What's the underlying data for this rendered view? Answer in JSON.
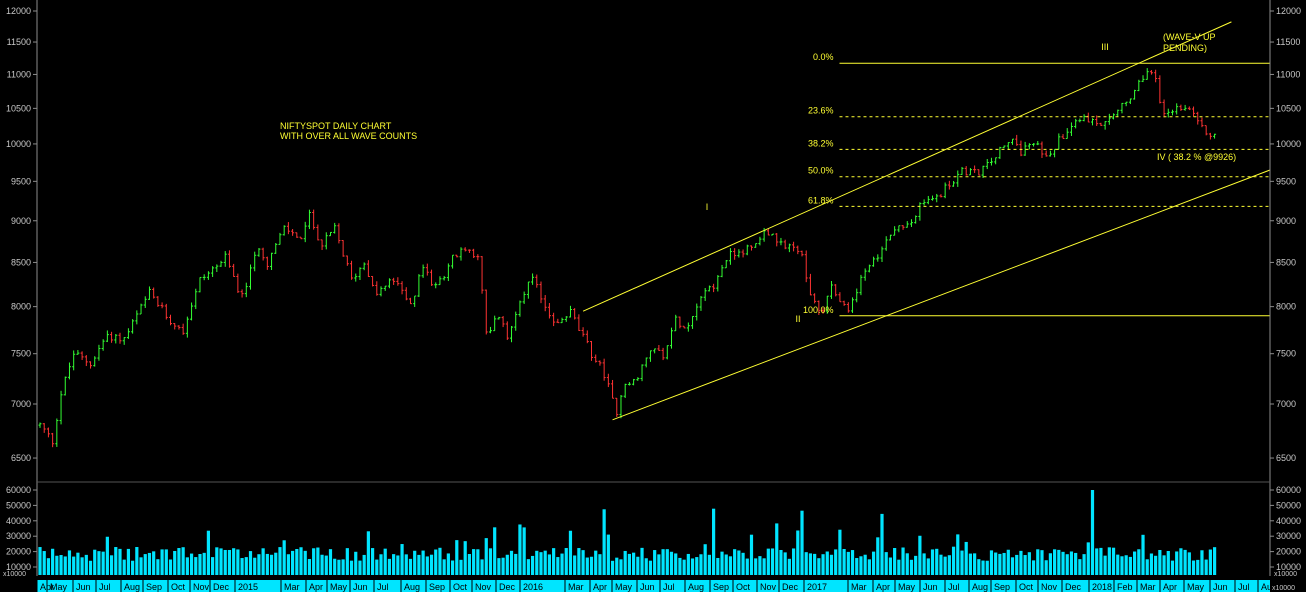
{
  "chart_data": {
    "type": "candlestick",
    "scale": "log",
    "price_axis": {
      "ticks": [
        6500,
        7000,
        7500,
        8000,
        8500,
        9000,
        9500,
        10000,
        10500,
        11000,
        11500,
        12000
      ],
      "tick_labels": [
        "6500",
        "7000",
        "7500",
        "8000",
        "8500",
        "9000",
        "9500",
        "10000",
        "10500",
        "11000",
        "11500",
        "12000"
      ]
    },
    "volume_axis": {
      "ticks": [
        10000,
        20000,
        30000,
        40000,
        50000,
        60000
      ],
      "tick_labels": [
        "10000",
        "20000",
        "30000",
        "40000",
        "50000",
        "60000"
      ],
      "multiplier_label": "x10000"
    },
    "x_axis": {
      "labels": [
        "Apr",
        "May",
        "Jun",
        "Jul",
        "Aug",
        "Sep",
        "Oct",
        "Nov",
        "Dec",
        "2015",
        "Mar",
        "Apr",
        "May",
        "Jun",
        "Jul",
        "Aug",
        "Sep",
        "Oct",
        "Nov",
        "Dec",
        "2016",
        "Mar",
        "Apr",
        "May",
        "Jun",
        "Jul",
        "Aug",
        "Sep",
        "Oct",
        "Nov",
        "Dec",
        "2017",
        "Mar",
        "Apr",
        "May",
        "Jun",
        "Jul",
        "Aug",
        "Sep",
        "Oct",
        "Nov",
        "Dec",
        "2018",
        "Feb",
        "Mar",
        "Apr",
        "May",
        "Jun",
        "Jul",
        "Aug"
      ],
      "multiplier_label": "x10000"
    },
    "price_keypoints": [
      {
        "t": 0,
        "p": 6800
      },
      {
        "t": 3,
        "p": 6650
      },
      {
        "t": 5,
        "p": 7100
      },
      {
        "t": 8,
        "p": 7500
      },
      {
        "t": 12,
        "p": 7400
      },
      {
        "t": 16,
        "p": 7700
      },
      {
        "t": 20,
        "p": 7650
      },
      {
        "t": 26,
        "p": 8150
      },
      {
        "t": 30,
        "p": 7900
      },
      {
        "t": 34,
        "p": 7750
      },
      {
        "t": 38,
        "p": 8300
      },
      {
        "t": 44,
        "p": 8550
      },
      {
        "t": 48,
        "p": 8100
      },
      {
        "t": 52,
        "p": 8700
      },
      {
        "t": 54,
        "p": 8500
      },
      {
        "t": 58,
        "p": 8900
      },
      {
        "t": 62,
        "p": 8800
      },
      {
        "t": 64,
        "p": 9050
      },
      {
        "t": 67,
        "p": 8700
      },
      {
        "t": 70,
        "p": 8900
      },
      {
        "t": 74,
        "p": 8300
      },
      {
        "t": 77,
        "p": 8500
      },
      {
        "t": 80,
        "p": 8150
      },
      {
        "t": 84,
        "p": 8300
      },
      {
        "t": 88,
        "p": 8000
      },
      {
        "t": 91,
        "p": 8450
      },
      {
        "t": 94,
        "p": 8200
      },
      {
        "t": 98,
        "p": 8550
      },
      {
        "t": 101,
        "p": 8650
      },
      {
        "t": 104,
        "p": 8600
      },
      {
        "t": 106,
        "p": 7700
      },
      {
        "t": 109,
        "p": 7900
      },
      {
        "t": 111,
        "p": 7650
      },
      {
        "t": 114,
        "p": 8100
      },
      {
        "t": 117,
        "p": 8300
      },
      {
        "t": 120,
        "p": 8000
      },
      {
        "t": 123,
        "p": 7800
      },
      {
        "t": 126,
        "p": 7950
      },
      {
        "t": 128,
        "p": 7750
      },
      {
        "t": 131,
        "p": 7500
      },
      {
        "t": 134,
        "p": 7300
      },
      {
        "t": 137,
        "p": 6900
      },
      {
        "t": 139,
        "p": 7200
      },
      {
        "t": 142,
        "p": 7250
      },
      {
        "t": 145,
        "p": 7550
      },
      {
        "t": 148,
        "p": 7500
      },
      {
        "t": 151,
        "p": 7850
      },
      {
        "t": 154,
        "p": 7800
      },
      {
        "t": 157,
        "p": 8150
      },
      {
        "t": 160,
        "p": 8250
      },
      {
        "t": 163,
        "p": 8550
      },
      {
        "t": 166,
        "p": 8650
      },
      {
        "t": 169,
        "p": 8650
      },
      {
        "t": 172,
        "p": 8900
      },
      {
        "t": 175,
        "p": 8750
      },
      {
        "t": 178,
        "p": 8700
      },
      {
        "t": 181,
        "p": 8600
      },
      {
        "t": 183,
        "p": 8100
      },
      {
        "t": 186,
        "p": 7950
      },
      {
        "t": 188,
        "p": 8250
      },
      {
        "t": 190,
        "p": 8100
      },
      {
        "t": 192,
        "p": 7950
      },
      {
        "t": 195,
        "p": 8300
      },
      {
        "t": 198,
        "p": 8500
      },
      {
        "t": 201,
        "p": 8800
      },
      {
        "t": 204,
        "p": 8950
      },
      {
        "t": 207,
        "p": 9000
      },
      {
        "t": 210,
        "p": 9250
      },
      {
        "t": 213,
        "p": 9300
      },
      {
        "t": 216,
        "p": 9450
      },
      {
        "t": 219,
        "p": 9650
      },
      {
        "t": 222,
        "p": 9600
      },
      {
        "t": 225,
        "p": 9700
      },
      {
        "t": 228,
        "p": 9900
      },
      {
        "t": 231,
        "p": 10050
      },
      {
        "t": 233,
        "p": 9900
      },
      {
        "t": 236,
        "p": 10000
      },
      {
        "t": 239,
        "p": 9850
      },
      {
        "t": 242,
        "p": 10050
      },
      {
        "t": 245,
        "p": 10300
      },
      {
        "t": 248,
        "p": 10400
      },
      {
        "t": 251,
        "p": 10250
      },
      {
        "t": 254,
        "p": 10300
      },
      {
        "t": 257,
        "p": 10550
      },
      {
        "t": 260,
        "p": 10700
      },
      {
        "t": 263,
        "p": 11100
      },
      {
        "t": 265,
        "p": 10900
      },
      {
        "t": 267,
        "p": 10400
      },
      {
        "t": 270,
        "p": 10500
      },
      {
        "t": 273,
        "p": 10450
      },
      {
        "t": 276,
        "p": 10200
      },
      {
        "t": 279,
        "p": 10100
      }
    ],
    "fibonacci_levels": [
      {
        "label": "0.0%",
        "price": 11171
      },
      {
        "label": "23.6%",
        "price": 10380
      },
      {
        "label": "38.2%",
        "price": 9926
      },
      {
        "label": "50.0%",
        "price": 9560
      },
      {
        "label": "61.8%",
        "price": 9180
      },
      {
        "label": "100.0%",
        "price": 7900
      }
    ],
    "annotations": [
      {
        "text": "NIFTYSPOT DAILY CHART",
        "line": 1
      },
      {
        "text": "WITH OVER ALL WAVE COUNTS",
        "line": 2
      },
      {
        "text": "I",
        "wave": "I"
      },
      {
        "text": "II",
        "wave": "II"
      },
      {
        "text": "III",
        "wave": "III"
      },
      {
        "text": "IV ( 38.2 % @9926)",
        "wave": "IV"
      },
      {
        "text": "(WAVE-V UP",
        "line": 1
      },
      {
        "text": "PENDING)",
        "line": 2
      }
    ],
    "channel": {
      "upper": [
        {
          "t": 129,
          "p": 7950
        },
        {
          "t": 261,
          "p": 11171
        }
      ],
      "lower": [
        {
          "t": 136,
          "p": 6850
        },
        {
          "t": 201,
          "p": 7900
        }
      ]
    },
    "colors": {
      "background": "#000000",
      "up": "#33ff33",
      "down": "#ff3333",
      "volume": "#00e5ff",
      "lines": "#ffff33",
      "axis_text": "#c8c8c8",
      "x_axis_band": "#00e5ff"
    },
    "grid": false
  }
}
